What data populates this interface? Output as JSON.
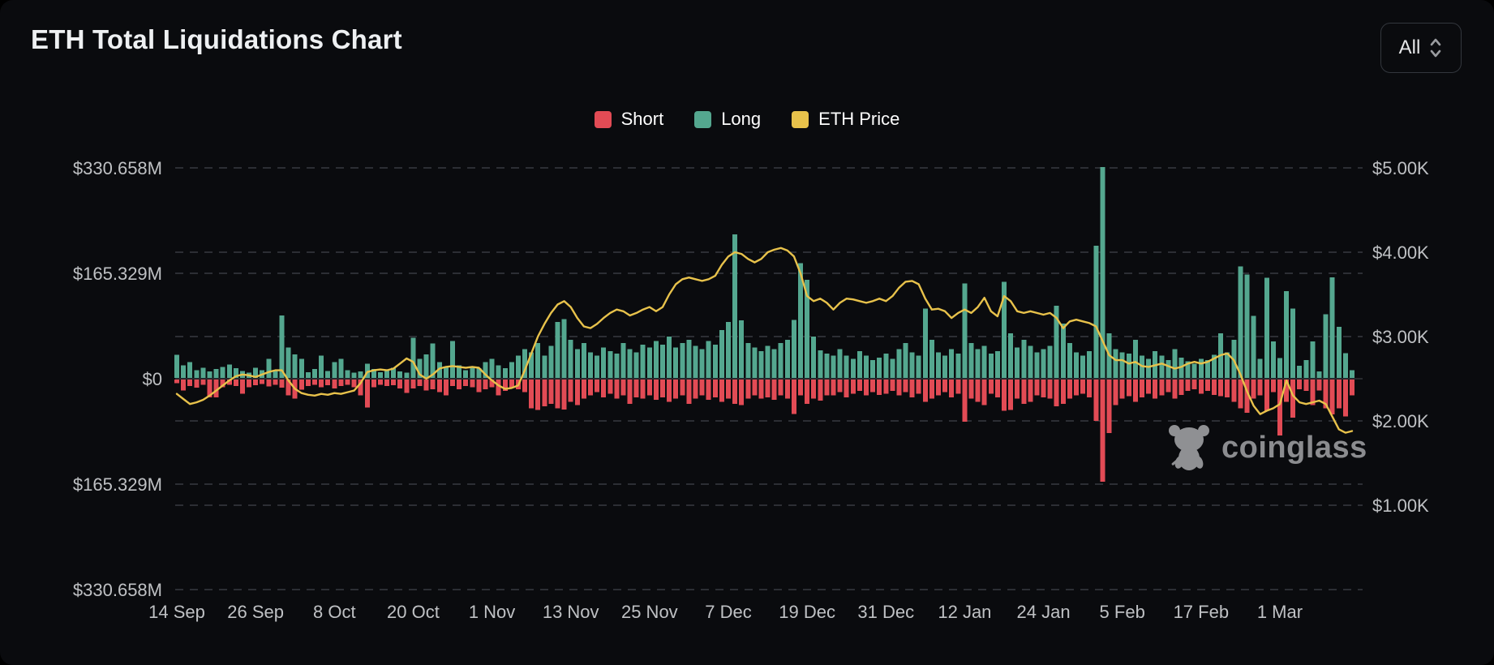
{
  "header": {
    "title": "ETH Total Liquidations Chart",
    "range_selector": {
      "value": "All"
    }
  },
  "watermark": {
    "text": "coinglass"
  },
  "chart_data": {
    "type": "bar+line",
    "title": "ETH Total Liquidations Chart",
    "legend_position": "top-center",
    "grid": "dashed-horizontal",
    "x_tick_labels": [
      "14 Sep",
      "26 Sep",
      "8 Oct",
      "20 Oct",
      "1 Nov",
      "13 Nov",
      "25 Nov",
      "7 Dec",
      "19 Dec",
      "31 Dec",
      "12 Jan",
      "24 Jan",
      "5 Feb",
      "17 Feb",
      "1 Mar"
    ],
    "x_tick_indices": [
      0,
      12,
      24,
      36,
      48,
      60,
      72,
      84,
      96,
      108,
      120,
      132,
      144,
      156,
      168
    ],
    "left_axis": {
      "title": "Liquidations (USD)",
      "tick_labels": [
        "$330.658M",
        "$165.329M",
        "$0",
        "$165.329M",
        "$330.658M"
      ],
      "tick_values": [
        330.658,
        165.329,
        0,
        -165.329,
        -330.658
      ],
      "max": 330.658
    },
    "right_axis": {
      "title": "ETH Price (USD)",
      "tick_labels": [
        "$5.00K",
        "$4.00K",
        "$3.00K",
        "$2.00K",
        "$1.00K"
      ],
      "tick_values": [
        5,
        4,
        3,
        2,
        1
      ]
    },
    "series": [
      {
        "name": "Short",
        "type": "bar",
        "direction": "down",
        "axis": "left",
        "unit": "M",
        "color": "#e24b55",
        "values": [
          6,
          17,
          10,
          13,
          8,
          28,
          28,
          12,
          8,
          10,
          22,
          12,
          9,
          7,
          11,
          8,
          13,
          25,
          30,
          16,
          10,
          8,
          12,
          9,
          14,
          10,
          8,
          12,
          25,
          44,
          12,
          8,
          10,
          9,
          14,
          21,
          14,
          10,
          17,
          15,
          20,
          25,
          10,
          15,
          10,
          12,
          20,
          15,
          12,
          25,
          18,
          12,
          15,
          20,
          45,
          48,
          42,
          38,
          45,
          47,
          35,
          40,
          30,
          25,
          20,
          28,
          22,
          30,
          25,
          38,
          28,
          30,
          25,
          32,
          28,
          35,
          30,
          25,
          38,
          30,
          25,
          32,
          28,
          35,
          30,
          38,
          40,
          30,
          25,
          30,
          28,
          32,
          25,
          30,
          54,
          25,
          38,
          30,
          33,
          25,
          25,
          20,
          28,
          22,
          18,
          25,
          20,
          24,
          22,
          18,
          25,
          20,
          28,
          22,
          35,
          30,
          25,
          20,
          28,
          22,
          66,
          30,
          35,
          40,
          22,
          28,
          49,
          48,
          30,
          38,
          35,
          25,
          28,
          30,
          42,
          38,
          30,
          25,
          22,
          28,
          65,
          160,
          84,
          40,
          30,
          26,
          35,
          28,
          22,
          30,
          25,
          20,
          30,
          24,
          18,
          15,
          22,
          18,
          24,
          26,
          28,
          35,
          45,
          52,
          30,
          25,
          49,
          20,
          88,
          35,
          60,
          15,
          18,
          40,
          17,
          45,
          55,
          45,
          58,
          25
        ]
      },
      {
        "name": "Long",
        "type": "bar",
        "direction": "up",
        "axis": "left",
        "unit": "M",
        "color": "#54a78f",
        "values": [
          36,
          20,
          25,
          12,
          16,
          10,
          14,
          17,
          21,
          15,
          11,
          8,
          16,
          12,
          30,
          11,
          98,
          48,
          37,
          30,
          9,
          14,
          35,
          11,
          25,
          30,
          12,
          8,
          10,
          22,
          14,
          9,
          12,
          16,
          10,
          8,
          63,
          30,
          37,
          54,
          25,
          18,
          58,
          20,
          12,
          18,
          15,
          25,
          30,
          20,
          15,
          25,
          35,
          45,
          40,
          55,
          35,
          50,
          88,
          92,
          60,
          45,
          55,
          40,
          35,
          48,
          42,
          38,
          55,
          45,
          40,
          52,
          48,
          58,
          52,
          65,
          48,
          55,
          60,
          50,
          45,
          58,
          52,
          75,
          88,
          225,
          90,
          55,
          48,
          42,
          50,
          45,
          55,
          60,
          91,
          180,
          154,
          65,
          43,
          38,
          35,
          45,
          35,
          30,
          42,
          35,
          28,
          32,
          38,
          30,
          45,
          55,
          40,
          35,
          109,
          60,
          40,
          35,
          45,
          38,
          148,
          55,
          45,
          50,
          38,
          42,
          151,
          70,
          48,
          60,
          50,
          40,
          45,
          50,
          113,
          85,
          55,
          40,
          35,
          42,
          207,
          330.658,
          70,
          45,
          40,
          38,
          60,
          35,
          30,
          42,
          35,
          28,
          45,
          32,
          26,
          22,
          30,
          28,
          36,
          70,
          40,
          60,
          175,
          162,
          97,
          30,
          157,
          57,
          31,
          136,
          109,
          19,
          28,
          57,
          10,
          100,
          158,
          80,
          39,
          12
        ]
      },
      {
        "name": "ETH Price",
        "type": "line",
        "axis": "right",
        "unit": "K",
        "color": "#e8c24b",
        "values": [
          2.32,
          2.26,
          2.2,
          2.22,
          2.25,
          2.3,
          2.36,
          2.42,
          2.48,
          2.53,
          2.55,
          2.54,
          2.52,
          2.55,
          2.58,
          2.6,
          2.6,
          2.48,
          2.38,
          2.33,
          2.31,
          2.3,
          2.32,
          2.31,
          2.33,
          2.32,
          2.34,
          2.36,
          2.45,
          2.58,
          2.6,
          2.61,
          2.6,
          2.62,
          2.68,
          2.74,
          2.7,
          2.55,
          2.5,
          2.55,
          2.62,
          2.64,
          2.65,
          2.64,
          2.63,
          2.64,
          2.63,
          2.55,
          2.48,
          2.42,
          2.38,
          2.39,
          2.42,
          2.6,
          2.8,
          3.0,
          3.15,
          3.28,
          3.38,
          3.42,
          3.35,
          3.22,
          3.12,
          3.1,
          3.15,
          3.22,
          3.28,
          3.32,
          3.3,
          3.25,
          3.28,
          3.32,
          3.35,
          3.3,
          3.35,
          3.5,
          3.62,
          3.68,
          3.7,
          3.68,
          3.66,
          3.68,
          3.72,
          3.85,
          3.95,
          4.0,
          3.98,
          3.92,
          3.88,
          3.92,
          4.0,
          4.03,
          4.05,
          4.02,
          3.95,
          3.75,
          3.48,
          3.42,
          3.45,
          3.4,
          3.32,
          3.4,
          3.45,
          3.44,
          3.42,
          3.4,
          3.42,
          3.45,
          3.42,
          3.48,
          3.58,
          3.65,
          3.66,
          3.62,
          3.45,
          3.32,
          3.33,
          3.3,
          3.22,
          3.28,
          3.32,
          3.28,
          3.35,
          3.46,
          3.3,
          3.24,
          3.48,
          3.42,
          3.3,
          3.28,
          3.3,
          3.28,
          3.26,
          3.28,
          3.22,
          3.1,
          3.18,
          3.2,
          3.18,
          3.16,
          3.12,
          2.95,
          2.78,
          2.72,
          2.72,
          2.68,
          2.7,
          2.65,
          2.64,
          2.66,
          2.68,
          2.65,
          2.62,
          2.64,
          2.68,
          2.7,
          2.68,
          2.7,
          2.74,
          2.78,
          2.8,
          2.72,
          2.55,
          2.35,
          2.18,
          2.08,
          2.12,
          2.15,
          2.2,
          2.48,
          2.3,
          2.22,
          2.2,
          2.22,
          2.24,
          2.2,
          2.05,
          1.9,
          1.86,
          1.88
        ]
      }
    ]
  },
  "colors": {
    "background": "#0a0b0e",
    "grid": "#383b40",
    "axis_label": "#bfc1c4",
    "zero_line": "#45484d",
    "short": "#e24b55",
    "long": "#54a78f",
    "price": "#e8c24b"
  }
}
